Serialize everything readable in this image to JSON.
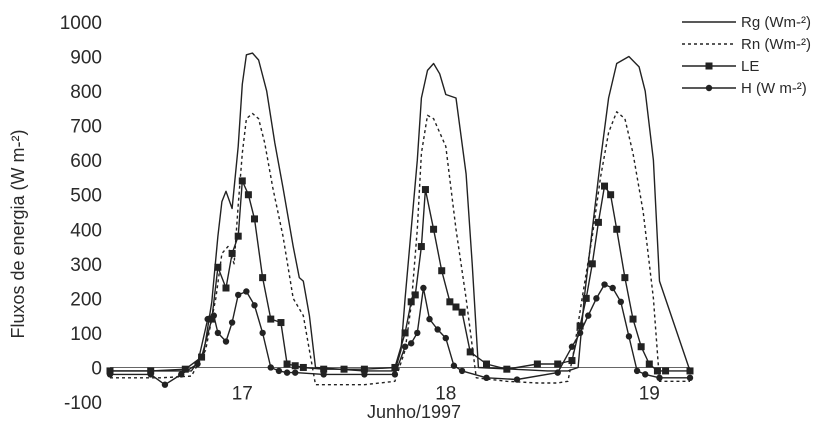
{
  "chart_data": {
    "type": "line",
    "xlabel": "Junho/1997",
    "ylabel": "Fluxos de energia (W m-²)",
    "ylim": [
      -100,
      1000
    ],
    "yticks": [
      -100,
      0,
      100,
      200,
      300,
      400,
      500,
      600,
      700,
      800,
      900,
      1000
    ],
    "xlim": [
      16.35,
      19.2
    ],
    "xticks": [
      {
        "value": 17,
        "label": "17"
      },
      {
        "value": 18,
        "label": "18"
      },
      {
        "value": 19,
        "label": "19"
      }
    ],
    "legend_position": "top-right",
    "series": [
      {
        "name": "Rg (Wm-²)",
        "style": "solid",
        "marker": "none",
        "x": [
          16.35,
          16.6,
          16.75,
          16.81,
          16.85,
          16.88,
          16.9,
          16.92,
          16.95,
          16.98,
          17.0,
          17.02,
          17.05,
          17.08,
          17.12,
          17.16,
          17.2,
          17.25,
          17.28,
          17.3,
          17.33,
          17.36,
          17.6,
          17.7,
          17.75,
          17.78,
          17.8,
          17.83,
          17.86,
          17.88,
          17.91,
          17.94,
          17.97,
          18.0,
          18.05,
          18.1,
          18.13,
          18.16,
          18.5,
          18.6,
          18.65,
          18.68,
          18.72,
          18.76,
          18.8,
          18.84,
          18.9,
          18.95,
          18.98,
          19.02,
          19.05,
          19.2
        ],
        "y": [
          -10,
          -10,
          -10,
          40,
          190,
          380,
          480,
          510,
          460,
          640,
          820,
          905,
          910,
          890,
          800,
          650,
          520,
          350,
          260,
          250,
          150,
          0,
          -10,
          -10,
          -10,
          50,
          200,
          400,
          600,
          780,
          860,
          880,
          850,
          790,
          780,
          560,
          300,
          0,
          -10,
          -10,
          0,
          200,
          400,
          600,
          780,
          880,
          900,
          870,
          800,
          600,
          250,
          -10
        ]
      },
      {
        "name": "Rn (Wm-²)",
        "style": "dotted",
        "marker": "none",
        "x": [
          16.35,
          16.6,
          16.75,
          16.82,
          16.87,
          16.9,
          16.93,
          16.96,
          16.98,
          17.0,
          17.02,
          17.05,
          17.08,
          17.11,
          17.15,
          17.2,
          17.25,
          17.3,
          17.36,
          17.5,
          17.6,
          17.75,
          17.8,
          17.83,
          17.86,
          17.88,
          17.91,
          17.94,
          18.0,
          18.05,
          18.1,
          18.15,
          18.3,
          18.45,
          18.55,
          18.6,
          18.63,
          18.67,
          18.72,
          18.76,
          18.8,
          18.84,
          18.88,
          18.92,
          18.97,
          19.02,
          19.05,
          19.2
        ],
        "y": [
          -30,
          -30,
          -25,
          50,
          200,
          330,
          350,
          300,
          470,
          620,
          720,
          735,
          720,
          650,
          520,
          380,
          200,
          150,
          -50,
          -50,
          -50,
          -40,
          50,
          180,
          400,
          620,
          730,
          720,
          640,
          400,
          200,
          -30,
          -40,
          -45,
          -45,
          -40,
          50,
          200,
          380,
          550,
          680,
          740,
          720,
          620,
          450,
          200,
          -40,
          -40
        ]
      },
      {
        "name": "LE",
        "style": "solid",
        "marker": "square",
        "x": [
          16.35,
          16.55,
          16.72,
          16.8,
          16.85,
          16.88,
          16.92,
          16.95,
          16.98,
          17.0,
          17.03,
          17.06,
          17.1,
          17.14,
          17.19,
          17.22,
          17.26,
          17.3,
          17.4,
          17.5,
          17.6,
          17.75,
          17.8,
          17.83,
          17.85,
          17.88,
          17.9,
          17.94,
          17.98,
          18.02,
          18.05,
          18.08,
          18.12,
          18.2,
          18.3,
          18.45,
          18.55,
          18.62,
          18.66,
          18.69,
          18.72,
          18.75,
          18.78,
          18.81,
          18.84,
          18.88,
          18.92,
          18.96,
          19.0,
          19.04,
          19.08,
          19.2
        ],
        "y": [
          -10,
          -10,
          -5,
          30,
          140,
          290,
          230,
          330,
          380,
          540,
          500,
          430,
          260,
          140,
          130,
          10,
          5,
          0,
          -5,
          -5,
          -5,
          0,
          100,
          190,
          210,
          350,
          515,
          400,
          280,
          190,
          175,
          160,
          45,
          10,
          -5,
          10,
          10,
          20,
          120,
          200,
          300,
          420,
          525,
          500,
          400,
          260,
          140,
          60,
          10,
          -10,
          -10,
          -10
        ]
      },
      {
        "name": "H (W m-²)",
        "style": "solid",
        "marker": "circle",
        "x": [
          16.35,
          16.55,
          16.62,
          16.7,
          16.78,
          16.83,
          16.86,
          16.88,
          16.92,
          16.95,
          16.98,
          17.02,
          17.06,
          17.1,
          17.14,
          17.18,
          17.22,
          17.26,
          17.4,
          17.6,
          17.75,
          17.8,
          17.83,
          17.86,
          17.89,
          17.92,
          17.96,
          18.0,
          18.04,
          18.08,
          18.2,
          18.35,
          18.55,
          18.62,
          18.66,
          18.7,
          18.74,
          18.78,
          18.82,
          18.86,
          18.9,
          18.94,
          18.98,
          19.05,
          19.2
        ],
        "y": [
          -20,
          -20,
          -50,
          -20,
          10,
          140,
          150,
          100,
          75,
          130,
          210,
          220,
          180,
          100,
          0,
          -10,
          -15,
          -15,
          -20,
          -20,
          -20,
          60,
          70,
          100,
          230,
          140,
          110,
          85,
          5,
          -10,
          -30,
          -35,
          -15,
          60,
          100,
          150,
          200,
          240,
          230,
          190,
          90,
          -10,
          -20,
          -30,
          -30
        ]
      }
    ]
  }
}
